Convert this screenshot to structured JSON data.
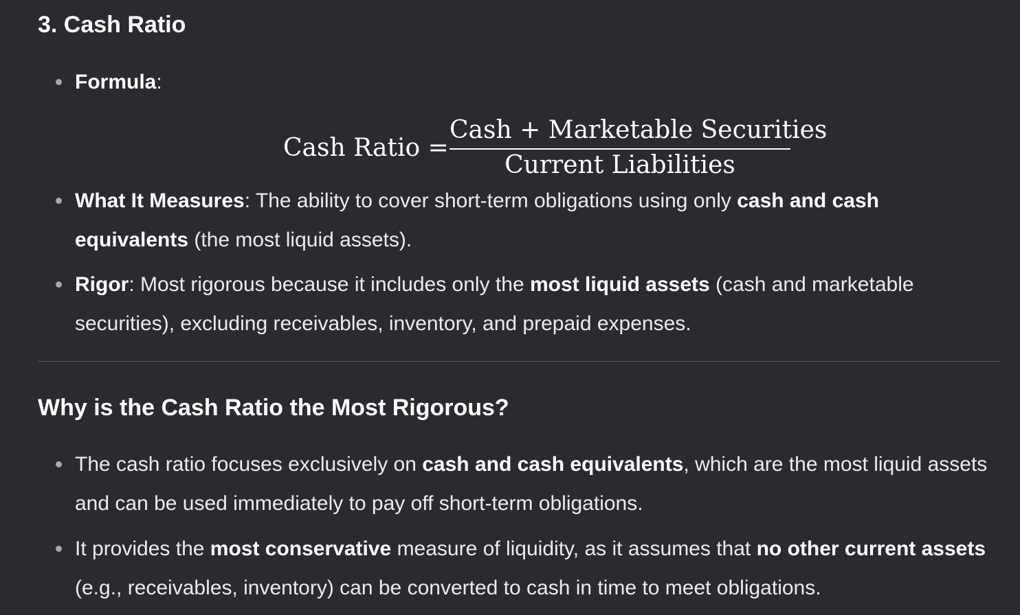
{
  "section": {
    "heading": "3. Cash Ratio"
  },
  "formula_item": {
    "label": "Formula",
    "suffix": ":"
  },
  "formula": {
    "lhs": "Cash Ratio =",
    "numerator": "Cash + Marketable Securities",
    "denominator": "Current Liabilities"
  },
  "measures_item": {
    "label": "What It Measures",
    "text_1": ": The ability to cover short-term obligations using only ",
    "bold_1": "cash and cash equivalents",
    "text_2": " (the most liquid assets)."
  },
  "rigor_item": {
    "label": "Rigor",
    "text_1": ": Most rigorous because it includes only the ",
    "bold_1": "most liquid assets",
    "text_2": " (cash and marketable securities), excluding receivables, inventory, and prepaid expenses."
  },
  "why": {
    "heading": "Why is the Cash Ratio the Most Rigorous?",
    "item_1": {
      "text_1": "The cash ratio focuses exclusively on ",
      "bold_1": "cash and cash equivalents",
      "text_2": ", which are the most liquid assets and can be used immediately to pay off short-term obligations."
    },
    "item_2": {
      "text_1": "It provides the ",
      "bold_1": "most conservative",
      "text_2": " measure of liquidity, as it assumes that ",
      "bold_2": "no other current assets",
      "text_3": " (e.g., receivables, inventory) can be converted to cash in time to meet obligations."
    }
  }
}
